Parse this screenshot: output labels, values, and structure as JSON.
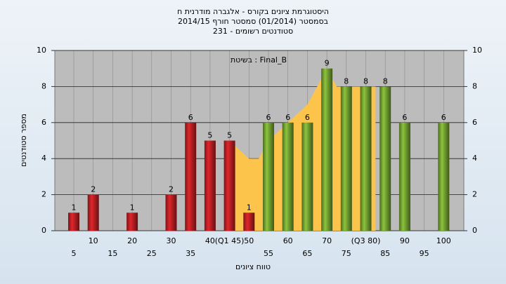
{
  "chart_data": {
    "type": "bar",
    "title": "היסטוגרמת ציונים בקורס - אלגברה מודרנית ח",
    "subtitle": "בסמסטר  (01/2014)  סמסטר חורף 2014/15",
    "subtitle2": "סטודנטים רשומים - 231",
    "annotation": "בשיטת : Final_B",
    "y_label": "מספר סטודנטים",
    "x_label": "טווח ציונים",
    "categories": [
      "5",
      "10",
      "15",
      "20",
      "25",
      "30",
      "35",
      "40",
      "(Q1 45)",
      "50",
      "55",
      "60",
      "65",
      "70",
      "75",
      "(Q3 80)",
      "85",
      "90",
      "95",
      "100"
    ],
    "values": [
      1,
      2,
      0,
      1,
      0,
      2,
      6,
      5,
      5,
      1,
      6,
      6,
      6,
      9,
      8,
      8,
      8,
      6,
      0,
      6
    ],
    "bar_colors": [
      "#e0262b",
      "#e0262b",
      "#e0262b",
      "#e0262b",
      "#e0262b",
      "#e0262b",
      "#e0262b",
      "#e0262b",
      "#e0262b",
      "#e0262b",
      "#8cc43c",
      "#8cc43c",
      "#8cc43c",
      "#8cc43c",
      "#8cc43c",
      "#8cc43c",
      "#8cc43c",
      "#8cc43c",
      "#8cc43c",
      "#8cc43c"
    ],
    "area": {
      "color": "#fcc44a",
      "x": [
        45,
        50,
        52.5,
        55,
        60,
        65,
        70,
        72.5,
        80,
        82.5
      ],
      "values": [
        5,
        4,
        4,
        5,
        6,
        7,
        9,
        8,
        8,
        8
      ]
    },
    "ylim": [
      0,
      10
    ],
    "yticks": [
      0,
      2,
      4,
      6,
      8,
      10
    ],
    "y2lim": [
      0,
      10
    ],
    "y2ticks": [
      0,
      2,
      4,
      6,
      8,
      10
    ],
    "grid": true
  }
}
